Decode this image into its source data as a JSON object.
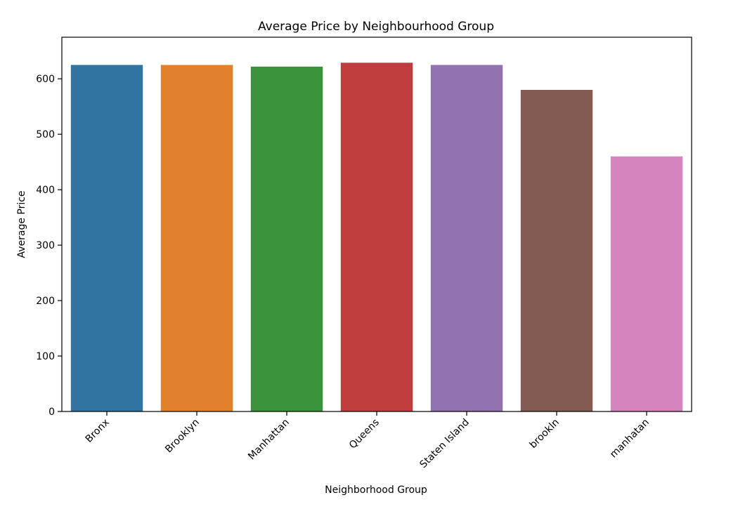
{
  "chart_data": {
    "type": "bar",
    "title": "Average Price by Neighbourhood Group",
    "xlabel": "Neighborhood Group",
    "ylabel": "Average Price",
    "categories": [
      "Bronx",
      "Brooklyn",
      "Manhattan",
      "Queens",
      "Staten Island",
      "brookln",
      "manhatan"
    ],
    "values": [
      625,
      625,
      622,
      629,
      625,
      580,
      460
    ],
    "colors": [
      "#3274a1",
      "#e1812c",
      "#3a923a",
      "#c03d3e",
      "#9372b2",
      "#845b53",
      "#d684bd"
    ],
    "ylim": [
      0,
      675
    ],
    "yticks": [
      0,
      100,
      200,
      300,
      400,
      500,
      600
    ],
    "grid": false,
    "legend": "none"
  }
}
